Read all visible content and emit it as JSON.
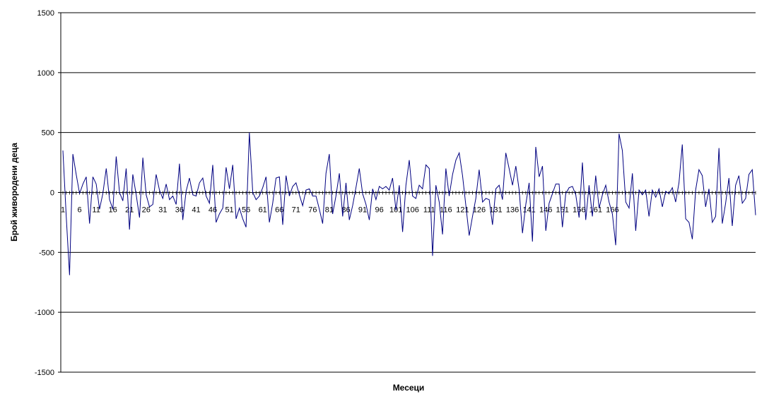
{
  "chart_data": {
    "type": "line",
    "title": "",
    "xlabel": "Месеци",
    "ylabel": "Брой живородени деца",
    "ylim": [
      -1500,
      1500
    ],
    "yticks": [
      1500,
      1000,
      500,
      0,
      -500,
      -1000,
      -1500
    ],
    "ytick_labels": [
      "1500",
      "1000",
      "500",
      "0",
      "-500",
      "-1000",
      "-1500"
    ],
    "xtick_labels": [
      "1",
      "6",
      "11",
      "16",
      "21",
      "26",
      "31",
      "36",
      "41",
      "46",
      "51",
      "56",
      "61",
      "66",
      "71",
      "76",
      "81",
      "86",
      "91",
      "96",
      "101",
      "106",
      "111",
      "116",
      "121",
      "126",
      "131",
      "136",
      "141",
      "146",
      "151",
      "156",
      "161",
      "166"
    ],
    "grid": true,
    "legend": "none",
    "line_color": "#000080",
    "series": [
      {
        "x_start": 1,
        "values": [
          350,
          -200,
          -690,
          320,
          150,
          -10,
          70,
          130,
          -260,
          130,
          70,
          -140,
          -10,
          200,
          -60,
          -140,
          300,
          0,
          -70,
          200,
          -310,
          150,
          -20,
          -210,
          290,
          -20,
          -120,
          -100,
          150,
          20,
          -50,
          70,
          -60,
          -30,
          -100,
          240,
          -230,
          10,
          120,
          -20,
          -30,
          80,
          120,
          -30,
          -90,
          230,
          -250,
          -180,
          -130,
          210,
          30,
          230,
          -220,
          -130,
          -220,
          -290,
          500,
          0,
          -60,
          -30,
          40,
          130,
          -250,
          -90,
          120,
          130,
          -270,
          140,
          -30,
          50,
          80,
          -20,
          -110,
          20,
          30,
          -30,
          -30,
          -140,
          -260,
          160,
          320,
          -180,
          -30,
          160,
          -200,
          80,
          -230,
          -110,
          40,
          200,
          -10,
          -100,
          -230,
          30,
          -60,
          50,
          30,
          50,
          20,
          120,
          -150,
          60,
          -330,
          60,
          270,
          -30,
          -50,
          60,
          30,
          230,
          200,
          -530,
          60,
          -80,
          -350,
          200,
          -30,
          150,
          270,
          330,
          140,
          -110,
          -360,
          -200,
          -50,
          190,
          -80,
          -50,
          -60,
          -270,
          30,
          60,
          -60,
          330,
          200,
          60,
          220,
          20,
          -340,
          -100,
          80,
          -410,
          380,
          130,
          220,
          -320,
          -90,
          -10,
          70,
          70,
          -290,
          -10,
          40,
          50,
          -20,
          -210,
          250,
          -230,
          60,
          -200,
          140,
          -130,
          -20,
          60,
          -80,
          -180,
          -440,
          490,
          350,
          -80,
          -130,
          160,
          -320,
          20,
          -20,
          20,
          -200,
          20,
          -40,
          30,
          -120,
          10,
          -10,
          40,
          -80,
          80,
          400,
          -220,
          -250,
          -390,
          20,
          190,
          140,
          -120,
          30,
          -250,
          -200,
          370,
          -260,
          -90,
          120,
          -280,
          60,
          140,
          -90,
          -50,
          150,
          190,
          -190
        ]
      }
    ]
  }
}
